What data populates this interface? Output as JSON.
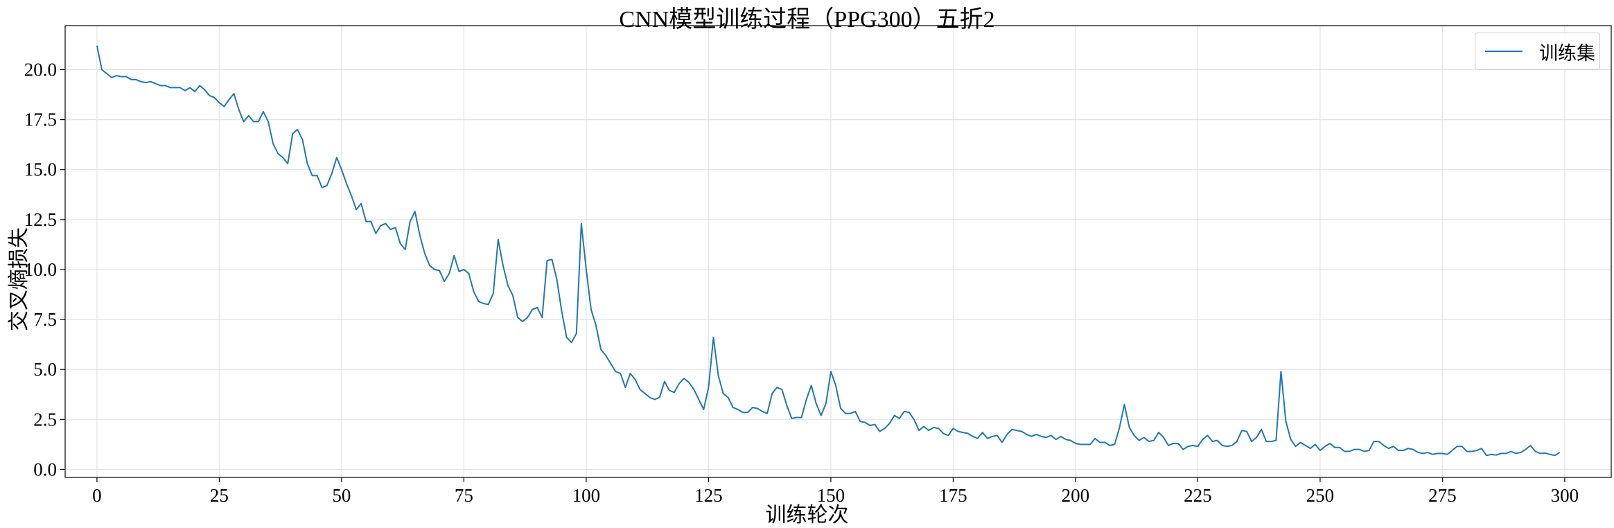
{
  "chart_data": {
    "type": "line",
    "title": "CNN模型训练过程（PPG300）五折2",
    "xlabel": "训练轮次",
    "ylabel": "交叉熵损失",
    "xlim": [
      -6.5,
      309.5
    ],
    "ylim": [
      -0.4,
      22.2
    ],
    "xticks": [
      0,
      25,
      50,
      75,
      100,
      125,
      150,
      175,
      200,
      225,
      250,
      275,
      300
    ],
    "yticks": [
      0.0,
      2.5,
      5.0,
      7.5,
      10.0,
      12.5,
      15.0,
      17.5,
      20.0
    ],
    "xtick_labels": [
      "0",
      "25",
      "50",
      "75",
      "100",
      "125",
      "150",
      "175",
      "200",
      "225",
      "250",
      "275",
      "300"
    ],
    "ytick_labels": [
      "0.0",
      "2.5",
      "5.0",
      "7.5",
      "10.0",
      "12.5",
      "15.0",
      "17.5",
      "20.0"
    ],
    "grid": true,
    "legend_position": "top-right",
    "series": [
      {
        "name": "训练集",
        "color": "#1f77b4",
        "x_start": 0,
        "values": [
          21.2,
          20.0,
          19.8,
          19.6,
          19.7,
          19.65,
          19.65,
          19.5,
          19.5,
          19.4,
          19.35,
          19.4,
          19.3,
          19.2,
          19.2,
          19.1,
          19.1,
          19.1,
          18.95,
          19.1,
          18.9,
          19.2,
          19.0,
          18.7,
          18.6,
          18.35,
          18.15,
          18.5,
          18.8,
          18.0,
          17.4,
          17.7,
          17.4,
          17.4,
          17.9,
          17.4,
          16.3,
          15.8,
          15.6,
          15.3,
          16.8,
          17.0,
          16.5,
          15.3,
          14.7,
          14.7,
          14.1,
          14.2,
          14.8,
          15.6,
          15.0,
          14.3,
          13.7,
          13.0,
          13.3,
          12.4,
          12.4,
          11.8,
          12.2,
          12.3,
          12.0,
          12.1,
          11.3,
          11.0,
          12.4,
          12.9,
          11.7,
          10.8,
          10.2,
          10.0,
          9.95,
          9.4,
          9.8,
          10.7,
          9.9,
          10.0,
          9.8,
          8.9,
          8.4,
          8.3,
          8.25,
          8.8,
          11.5,
          10.2,
          9.2,
          8.7,
          7.6,
          7.4,
          7.6,
          8.0,
          8.1,
          7.6,
          10.45,
          10.5,
          9.5,
          7.9,
          6.6,
          6.35,
          6.8,
          12.3,
          10.0,
          8.0,
          7.2,
          6.0,
          5.7,
          5.3,
          4.9,
          4.8,
          4.1,
          4.8,
          4.5,
          4.0,
          3.8,
          3.6,
          3.5,
          3.6,
          4.4,
          3.95,
          3.85,
          4.3,
          4.55,
          4.35,
          4.0,
          3.5,
          3.0,
          4.1,
          6.6,
          4.7,
          3.8,
          3.6,
          3.1,
          3.0,
          2.85,
          2.85,
          3.1,
          3.05,
          2.9,
          2.8,
          3.8,
          4.1,
          4.0,
          3.2,
          2.55,
          2.6,
          2.6,
          3.5,
          4.2,
          3.3,
          2.7,
          3.3,
          4.9,
          4.2,
          3.05,
          2.8,
          2.8,
          2.9,
          2.4,
          2.35,
          2.2,
          2.25,
          1.9,
          2.05,
          2.3,
          2.7,
          2.55,
          2.9,
          2.85,
          2.5,
          1.95,
          2.15,
          1.95,
          2.1,
          2.05,
          1.8,
          1.7,
          2.05,
          1.9,
          1.85,
          1.8,
          1.65,
          1.55,
          1.85,
          1.55,
          1.65,
          1.7,
          1.35,
          1.75,
          2.0,
          1.95,
          1.9,
          1.75,
          1.65,
          1.75,
          1.65,
          1.6,
          1.7,
          1.5,
          1.65,
          1.5,
          1.45,
          1.3,
          1.25,
          1.25,
          1.25,
          1.55,
          1.35,
          1.35,
          1.2,
          1.25,
          2.1,
          3.25,
          2.1,
          1.7,
          1.45,
          1.6,
          1.4,
          1.45,
          1.85,
          1.6,
          1.2,
          1.3,
          1.3,
          1.0,
          1.15,
          1.2,
          1.15,
          1.5,
          1.7,
          1.4,
          1.45,
          1.2,
          1.15,
          1.2,
          1.4,
          1.95,
          1.9,
          1.4,
          1.6,
          2.0,
          1.4,
          1.4,
          1.45,
          4.9,
          2.4,
          1.5,
          1.15,
          1.35,
          1.2,
          1.05,
          1.25,
          0.95,
          1.15,
          1.3,
          1.1,
          1.1,
          0.9,
          0.9,
          1.0,
          1.0,
          0.9,
          0.95,
          1.4,
          1.4,
          1.2,
          1.05,
          1.15,
          0.95,
          0.95,
          1.05,
          1.0,
          0.85,
          0.8,
          0.85,
          0.75,
          0.8,
          0.8,
          0.75,
          0.95,
          1.15,
          1.15,
          0.9,
          0.9,
          0.95,
          1.05,
          0.7,
          0.75,
          0.72,
          0.8,
          0.8,
          0.9,
          0.8,
          0.85,
          1.0,
          1.2,
          0.9,
          0.8,
          0.82,
          0.75,
          0.7,
          0.85
        ]
      }
    ]
  }
}
